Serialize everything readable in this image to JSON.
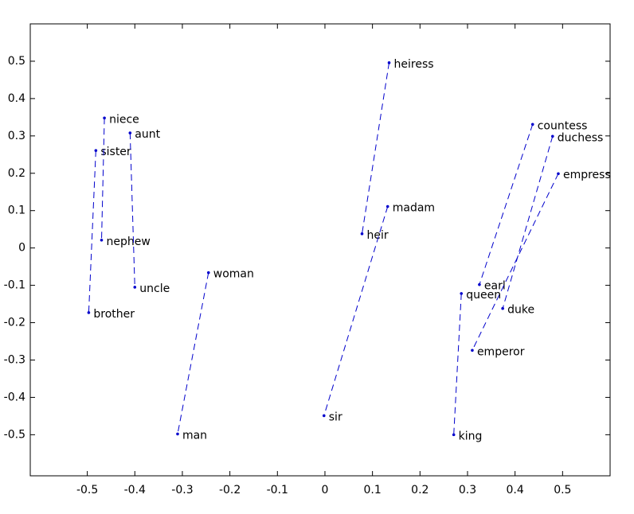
{
  "chart_data": {
    "type": "scatter",
    "xlim": [
      -0.62,
      0.6
    ],
    "ylim": [
      -0.61,
      0.6
    ],
    "xticks": [
      -0.5,
      -0.4,
      -0.3,
      -0.2,
      -0.1,
      0,
      0.1,
      0.2,
      0.3,
      0.4,
      0.5
    ],
    "yticks": [
      -0.5,
      -0.4,
      -0.3,
      -0.2,
      -0.1,
      0,
      0.1,
      0.2,
      0.3,
      0.4,
      0.5
    ],
    "color": "#0000cc",
    "series": [
      {
        "labels": [
          "sister",
          "brother"
        ],
        "x": [
          -0.482,
          -0.497
        ],
        "values": [
          0.261,
          -0.173
        ]
      },
      {
        "labels": [
          "niece",
          "nephew"
        ],
        "x": [
          -0.464,
          -0.47
        ],
        "values": [
          0.348,
          0.021
        ]
      },
      {
        "labels": [
          "aunt",
          "uncle"
        ],
        "x": [
          -0.41,
          -0.4
        ],
        "values": [
          0.308,
          -0.105
        ]
      },
      {
        "labels": [
          "woman",
          "man"
        ],
        "x": [
          -0.245,
          -0.31
        ],
        "values": [
          -0.066,
          -0.498
        ]
      },
      {
        "labels": [
          "heiress",
          "heir"
        ],
        "x": [
          0.135,
          0.078
        ],
        "values": [
          0.496,
          0.038
        ]
      },
      {
        "labels": [
          "madam",
          "sir"
        ],
        "x": [
          0.132,
          -0.002
        ],
        "values": [
          0.111,
          -0.449
        ]
      },
      {
        "labels": [
          "countess",
          "earl"
        ],
        "x": [
          0.437,
          0.325
        ],
        "values": [
          0.331,
          -0.098
        ]
      },
      {
        "labels": [
          "duchess",
          "duke"
        ],
        "x": [
          0.479,
          0.374
        ],
        "values": [
          0.299,
          -0.162
        ]
      },
      {
        "labels": [
          "empress",
          "emperor"
        ],
        "x": [
          0.491,
          0.31
        ],
        "values": [
          0.199,
          -0.274
        ]
      },
      {
        "labels": [
          "queen",
          "king"
        ],
        "x": [
          0.287,
          0.271
        ],
        "values": [
          -0.122,
          -0.5
        ]
      }
    ]
  }
}
